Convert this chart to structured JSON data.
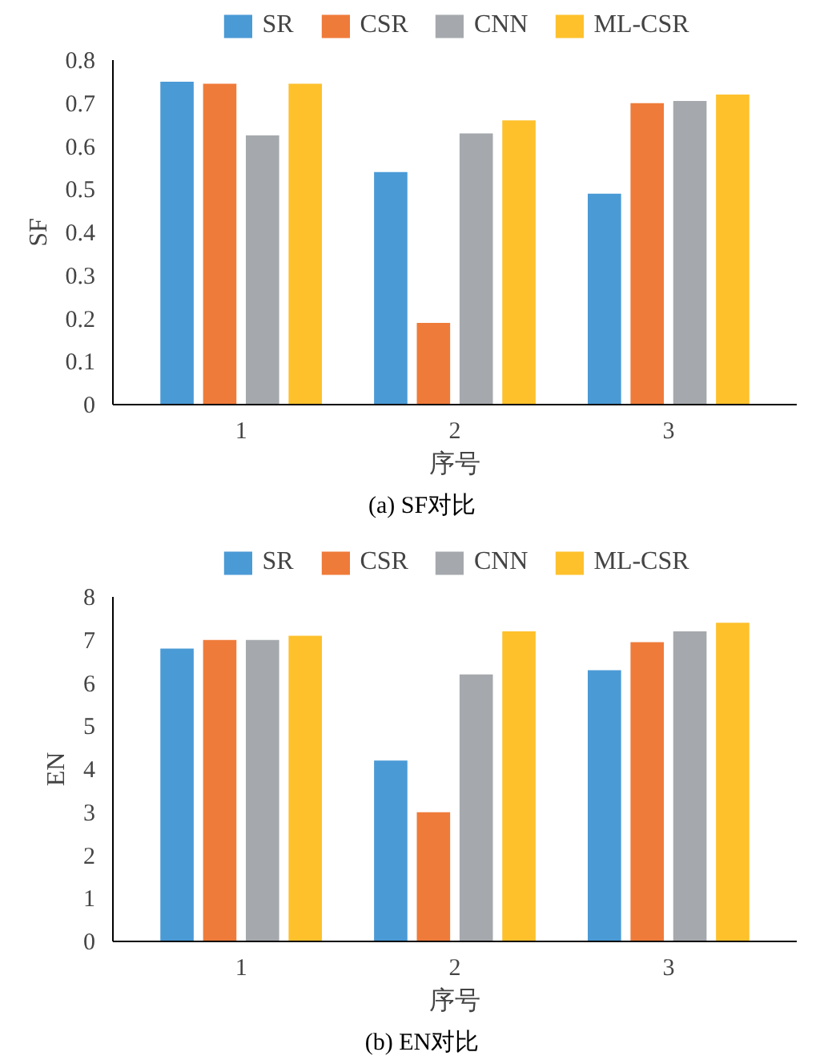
{
  "chart_data": [
    {
      "type": "bar",
      "categories": [
        "1",
        "2",
        "3"
      ],
      "xlabel": "序号",
      "ylabel": "SF",
      "ylim": [
        0,
        0.8
      ],
      "yticks": [
        0,
        0.1,
        0.2,
        0.3,
        0.4,
        0.5,
        0.6,
        0.7,
        0.8
      ],
      "grid": false,
      "legend": "top",
      "annotations": [
        "(a) SF对比"
      ],
      "series": [
        {
          "name": "SR",
          "color": "#4a9ad6",
          "values": [
            0.75,
            0.54,
            0.49
          ]
        },
        {
          "name": "CSR",
          "color": "#ef7b3a",
          "values": [
            0.745,
            0.19,
            0.7
          ]
        },
        {
          "name": "CNN",
          "color": "#a5a9ad",
          "values": [
            0.625,
            0.63,
            0.705
          ]
        },
        {
          "name": "ML-CSR",
          "color": "#fec12c",
          "values": [
            0.745,
            0.66,
            0.72
          ]
        }
      ]
    },
    {
      "type": "bar",
      "categories": [
        "1",
        "2",
        "3"
      ],
      "xlabel": "序号",
      "ylabel": "EN",
      "ylim": [
        0,
        8
      ],
      "yticks": [
        0,
        1,
        2,
        3,
        4,
        5,
        6,
        7,
        8
      ],
      "grid": false,
      "legend": "top",
      "annotations": [
        "(b) EN对比"
      ],
      "series": [
        {
          "name": "SR",
          "color": "#4a9ad6",
          "values": [
            6.8,
            4.2,
            6.3
          ]
        },
        {
          "name": "CSR",
          "color": "#ef7b3a",
          "values": [
            7.0,
            3.0,
            6.95
          ]
        },
        {
          "name": "CNN",
          "color": "#a5a9ad",
          "values": [
            7.0,
            6.2,
            7.2
          ]
        },
        {
          "name": "ML-CSR",
          "color": "#fec12c",
          "values": [
            7.1,
            7.2,
            7.4
          ]
        }
      ]
    }
  ]
}
